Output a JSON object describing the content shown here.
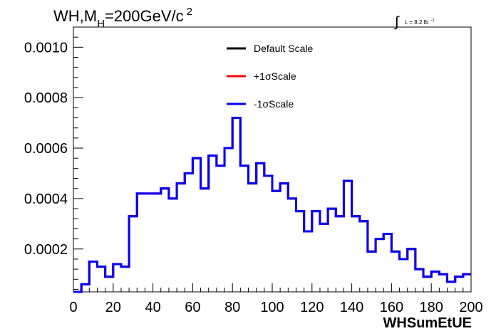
{
  "chart_data": {
    "type": "line",
    "title_main": "WH,M",
    "title_sub": "H",
    "title_rest": "=200GeV/c",
    "title_sup": "2",
    "lumi_label": "L = 8.2 fb",
    "lumi_sup": "-1",
    "xlabel": "WHSumEtUE",
    "ylabel": "",
    "xlim": [
      0,
      200
    ],
    "ylim": [
      3e-05,
      0.00108
    ],
    "x_ticks": [
      0,
      20,
      40,
      60,
      80,
      100,
      120,
      140,
      160,
      180,
      200
    ],
    "x_tick_labels": [
      "0",
      "20",
      "40",
      "60",
      "80",
      "100",
      "120",
      "140",
      "160",
      "180",
      "200"
    ],
    "y_ticks": [
      0.0002,
      0.0004,
      0.0006,
      0.0008,
      0.001
    ],
    "y_tick_labels": [
      "0.0002",
      "0.0004",
      "0.0006",
      "0.0008",
      "0.0010"
    ],
    "grid": false,
    "legend_placement": "top-center",
    "bin_edges": [
      0,
      4,
      8,
      12,
      16,
      20,
      24,
      28,
      32,
      36,
      40,
      44,
      48,
      52,
      56,
      60,
      64,
      68,
      72,
      76,
      80,
      84,
      88,
      92,
      96,
      100,
      104,
      108,
      112,
      116,
      120,
      124,
      128,
      132,
      136,
      140,
      144,
      148,
      152,
      156,
      160,
      164,
      168,
      172,
      176,
      180,
      184,
      188,
      192,
      196,
      200
    ],
    "series": [
      {
        "name": "Default Scale",
        "color": "#000000",
        "values": [
          3e-05,
          6e-05,
          0.00015,
          0.00013,
          9e-05,
          0.00014,
          0.00013,
          0.00033,
          0.00042,
          0.00042,
          0.00042,
          0.00044,
          0.0004,
          0.00046,
          0.0005,
          0.00056,
          0.00044,
          0.00057,
          0.00053,
          0.0006,
          0.00072,
          0.00053,
          0.00046,
          0.00054,
          0.00049,
          0.00043,
          0.00046,
          0.0004,
          0.00035,
          0.00027,
          0.00035,
          0.0003,
          0.00036,
          0.00033,
          0.00047,
          0.00033,
          0.00031,
          0.00019,
          0.00024,
          0.00026,
          0.00019,
          0.00016,
          0.0002,
          0.00012,
          9e-05,
          0.00011,
          0.0001,
          7e-05,
          9e-05,
          0.0001
        ]
      },
      {
        "name": "+1σScale",
        "color": "#ff0000",
        "values": [
          3e-05,
          6e-05,
          0.00015,
          0.00013,
          9e-05,
          0.00014,
          0.00013,
          0.00033,
          0.00042,
          0.00042,
          0.00042,
          0.00044,
          0.0004,
          0.00046,
          0.0005,
          0.00056,
          0.00044,
          0.00057,
          0.00053,
          0.0006,
          0.00072,
          0.00053,
          0.00046,
          0.00054,
          0.00049,
          0.00043,
          0.00046,
          0.0004,
          0.00035,
          0.00027,
          0.00035,
          0.0003,
          0.00036,
          0.00033,
          0.00047,
          0.00033,
          0.00031,
          0.00019,
          0.00024,
          0.00026,
          0.00019,
          0.00016,
          0.0002,
          0.00012,
          9e-05,
          0.00011,
          0.0001,
          7e-05,
          9e-05,
          0.0001
        ]
      },
      {
        "name": "-1σScale",
        "color": "#0000ff",
        "values": [
          3e-05,
          6e-05,
          0.00015,
          0.00013,
          9e-05,
          0.00014,
          0.00013,
          0.00033,
          0.00042,
          0.00042,
          0.00042,
          0.00044,
          0.0004,
          0.00046,
          0.0005,
          0.00056,
          0.00044,
          0.00057,
          0.00053,
          0.0006,
          0.00072,
          0.00053,
          0.00046,
          0.00054,
          0.00049,
          0.00043,
          0.00046,
          0.0004,
          0.00035,
          0.00027,
          0.00035,
          0.0003,
          0.00036,
          0.00033,
          0.00047,
          0.00033,
          0.00031,
          0.00019,
          0.00024,
          0.00026,
          0.00019,
          0.00016,
          0.0002,
          0.00012,
          9e-05,
          0.00011,
          0.0001,
          7e-05,
          9e-05,
          0.0001
        ]
      }
    ]
  }
}
